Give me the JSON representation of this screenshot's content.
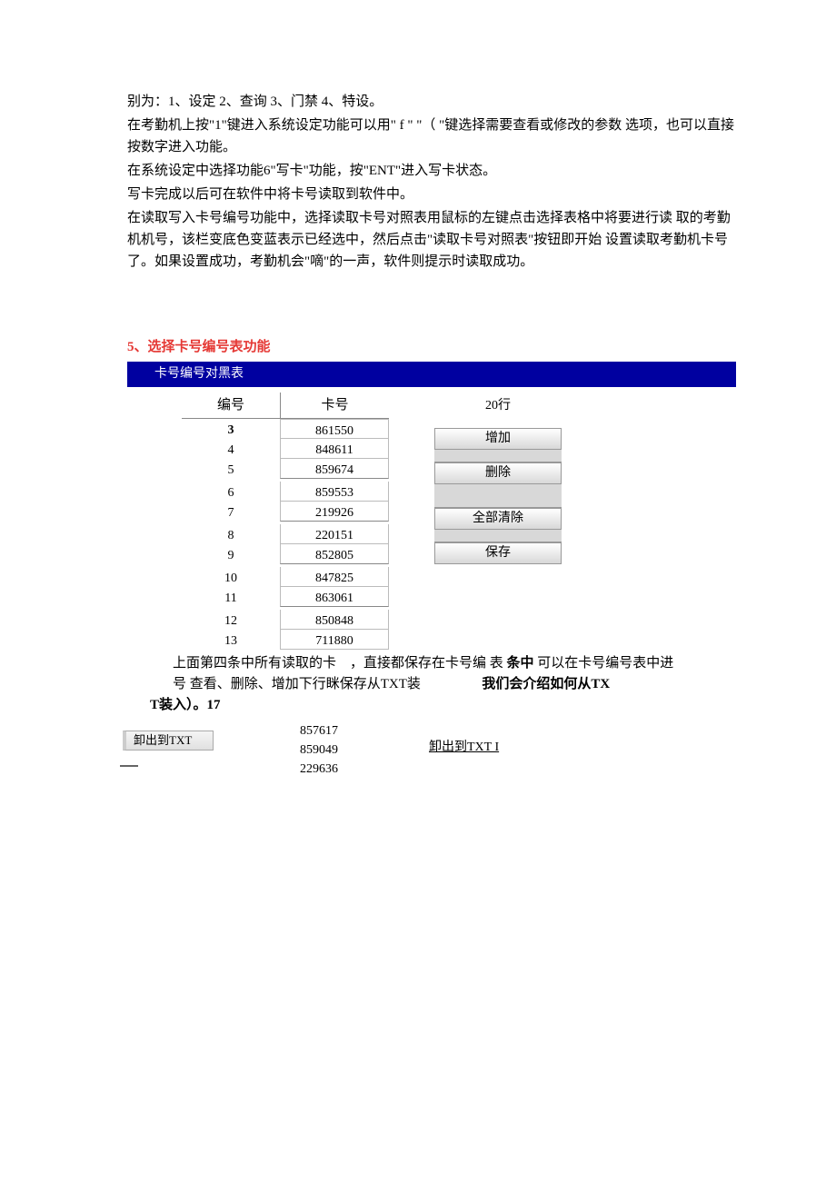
{
  "paragraphs": {
    "p1": "别为：1、设定 2、查询 3、门禁 4、特设。",
    "p2": "在考勤机上按\"1\"键进入系统设定功能可以用\" f \"  \"（ \"键选择需要查看或修改的参数 选项，也可以直接按数字进入功能。",
    "p3": "在系统设定中选择功能6\"写卡\"功能，按\"ENT\"进入写卡状态。",
    "p4": "写卡完成以后可在软件中将卡号读取到软件中。",
    "p5": "在读取写入卡号编号功能中，选择读取卡号对照表用鼠标的左键点击选择表格中将要进行读 取的考勤机机号，该栏变底色变蓝表示已经选中，然后点击\"读取卡号对照表\"按钮即开始 设置读取考勤机卡号了。如果设置成功，考勤机会\"嘀\"的一声，软件则提示时读取成功。"
  },
  "section": {
    "heading": "5、选择卡号编号表功能",
    "title_bar": "卡号编号对黑表"
  },
  "table": {
    "columns": [
      "编号",
      "卡号"
    ],
    "rows": [
      {
        "num": "3",
        "card": "861550",
        "bold": true,
        "sep_after": false
      },
      {
        "num": "4",
        "card": "848611",
        "bold": false,
        "sep_after": false
      },
      {
        "num": "5",
        "card": "859674",
        "bold": false,
        "sep_after": true
      },
      {
        "num": "6",
        "card": "859553",
        "bold": false,
        "sep_after": false
      },
      {
        "num": "7",
        "card": "219926",
        "bold": false,
        "sep_after": true
      },
      {
        "num": "8",
        "card": "220151",
        "bold": false,
        "sep_after": false
      },
      {
        "num": "9",
        "card": "852805",
        "bold": false,
        "sep_after": true
      },
      {
        "num": "10",
        "card": "847825",
        "bold": false,
        "sep_after": false
      },
      {
        "num": "11",
        "card": "863061",
        "bold": false,
        "sep_after": true
      },
      {
        "num": "12",
        "card": "850848",
        "bold": false,
        "sep_after": false
      },
      {
        "num": "13",
        "card": "711880",
        "bold": false,
        "sep_after": false
      }
    ]
  },
  "panel": {
    "row_count": "20行",
    "buttons": [
      "增加",
      "删除",
      "全部清除",
      "保存"
    ]
  },
  "desc": {
    "line1a": "上面第四条中所有读取的卡",
    "line1b": "，直接都保存在卡号编  表",
    "line1c": "条中",
    "line1d": "可以在卡号编号表中进",
    "line2a": "号 查看、删除、增加下行眯保存从TXT装",
    "line2b": "我们会介绍如何从TX",
    "line3": "T装入）。17"
  },
  "bottom": {
    "btn": "卸出到TXT",
    "nums": [
      "857617",
      "859049",
      "229636"
    ],
    "link": "卸出到TXT I"
  },
  "colors": {
    "heading": "#e53935",
    "titlebar_bg": "#0000a0",
    "titlebar_text": "#ffffff"
  }
}
